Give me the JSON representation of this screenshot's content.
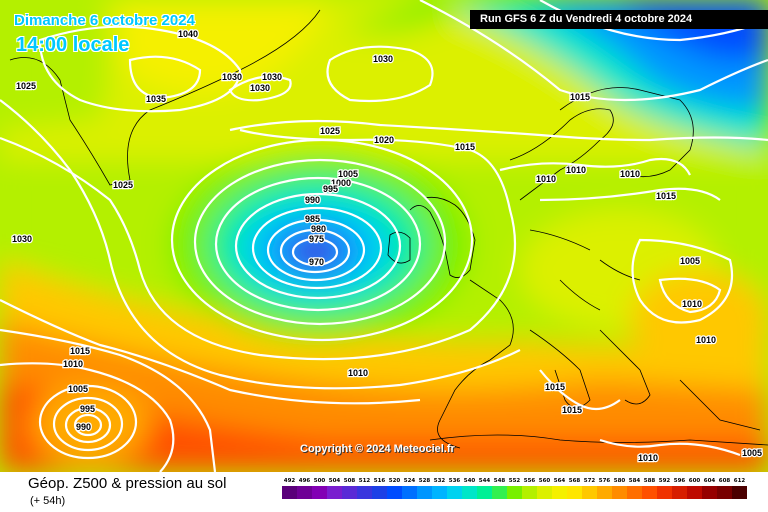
{
  "header": {
    "date_line": "Dimanche 6 octobre 2024",
    "local_time": "14:00 locale",
    "run_info": "Run GFS 6 Z du Vendredi 4 octobre 2024"
  },
  "copyright": "Copyright © 2024 Meteociel.fr",
  "footer": {
    "product": "Géop. Z500 & pression au sol",
    "lead_time": "(+ 54h)"
  },
  "color_scale": {
    "labels": [
      "492",
      "496",
      "500",
      "504",
      "508",
      "512",
      "516",
      "520",
      "524",
      "528",
      "532",
      "536",
      "540",
      "544",
      "548",
      "552",
      "556",
      "560",
      "564",
      "568",
      "572",
      "576",
      "580",
      "584",
      "588",
      "592",
      "596",
      "600",
      "604",
      "608",
      "612"
    ],
    "colors": [
      "#5a007a",
      "#6e0096",
      "#8200b4",
      "#7a1ecf",
      "#5a2ad6",
      "#3a35de",
      "#1c40e6",
      "#004cff",
      "#0070ff",
      "#0096ff",
      "#00b4ff",
      "#00d2f0",
      "#00e6c8",
      "#00f096",
      "#32f050",
      "#78f000",
      "#b4f000",
      "#dcf000",
      "#f5f000",
      "#ffe600",
      "#ffc800",
      "#ffaa00",
      "#ff8c00",
      "#ff6e00",
      "#ff5000",
      "#f03200",
      "#d71e00",
      "#be0a00",
      "#960000",
      "#780000",
      "#4b0000"
    ]
  },
  "isobar_labels": [
    {
      "text": "1040"
    },
    {
      "text": "1030"
    },
    {
      "text": "1030"
    },
    {
      "text": "1030"
    },
    {
      "text": "1030"
    },
    {
      "text": "1025"
    },
    {
      "text": "1035"
    },
    {
      "text": "1025"
    },
    {
      "text": "1025"
    },
    {
      "text": "1020"
    },
    {
      "text": "1015"
    },
    {
      "text": "1015"
    },
    {
      "text": "1005"
    },
    {
      "text": "1000"
    },
    {
      "text": "995"
    },
    {
      "text": "990"
    },
    {
      "text": "985"
    },
    {
      "text": "980"
    },
    {
      "text": "975"
    },
    {
      "text": "970"
    },
    {
      "text": "1010"
    },
    {
      "text": "1010"
    },
    {
      "text": "1010"
    },
    {
      "text": "1015"
    },
    {
      "text": "1005"
    },
    {
      "text": "1010"
    },
    {
      "text": "1010"
    },
    {
      "text": "1030"
    },
    {
      "text": "1015"
    },
    {
      "text": "1010"
    },
    {
      "text": "1005"
    },
    {
      "text": "1010"
    },
    {
      "text": "1015"
    },
    {
      "text": "1015"
    },
    {
      "text": "1010"
    },
    {
      "text": "1005"
    },
    {
      "text": "995"
    },
    {
      "text": "990"
    }
  ]
}
